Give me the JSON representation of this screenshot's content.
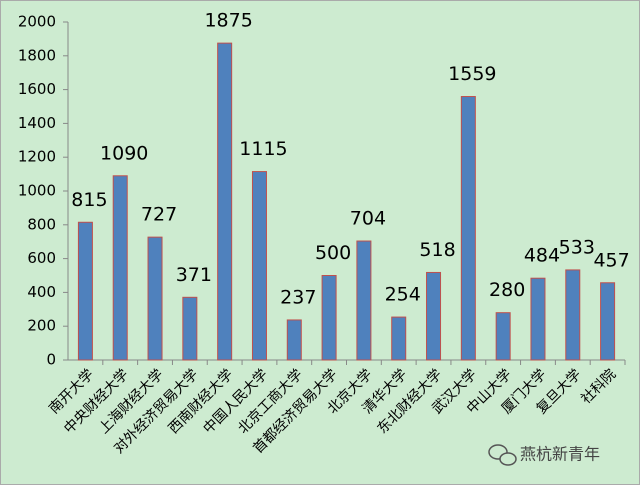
{
  "chart_data": {
    "type": "bar",
    "categories": [
      "南开大学",
      "中央财经大学",
      "上海财经大学",
      "对外经济贸易大学",
      "西南财经大学",
      "中国人民大学",
      "北京工商大学",
      "首都经济贸易大学",
      "北京大学",
      "清华大学",
      "东北财经大学",
      "武汉大学",
      "中山大学",
      "厦门大学",
      "复旦大学",
      "社科院"
    ],
    "values": [
      815,
      1090,
      727,
      371,
      1875,
      1115,
      237,
      500,
      704,
      254,
      518,
      1559,
      280,
      484,
      533,
      457
    ],
    "color": "#4f81bd",
    "edge_color": "#c0504d",
    "ylim": [
      0,
      2000
    ],
    "yticks": [
      0,
      200,
      400,
      600,
      800,
      1000,
      1200,
      1400,
      1600,
      1800,
      2000
    ],
    "grid": false,
    "show_value_labels": true,
    "watermark": "燕杭新青年"
  }
}
